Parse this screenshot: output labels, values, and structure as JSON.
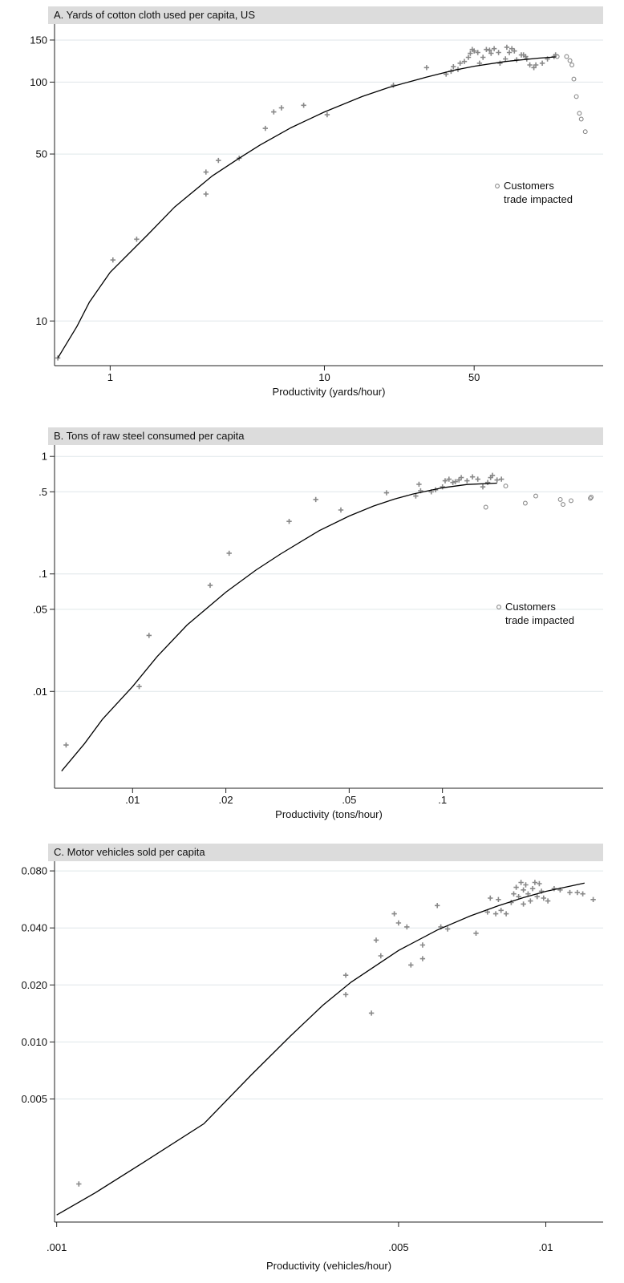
{
  "colors": {
    "title_bar": "#dcdcdc",
    "points": "#888888",
    "fit": "#000000",
    "grid": "#dfe6e9"
  },
  "chart_data": [
    {
      "type": "scatter",
      "title": "A. Yards of cotton cloth used per capita, US",
      "xlabel": "Productivity (yards/hour)",
      "ylabel": "",
      "xscale": "log",
      "yscale": "log",
      "xlim": [
        0.55,
        200
      ],
      "ylim": [
        6.5,
        175
      ],
      "xticks": [
        {
          "v": 1,
          "label": "1"
        },
        {
          "v": 10,
          "label": "10"
        },
        {
          "v": 50,
          "label": "50"
        }
      ],
      "yticks": [
        {
          "v": 10,
          "label": "10"
        },
        {
          "v": 50,
          "label": "50"
        },
        {
          "v": 100,
          "label": "100"
        },
        {
          "v": 150,
          "label": "150"
        }
      ],
      "legend": {
        "position": "center-right",
        "marker": "circle",
        "lines": [
          "Customers",
          "trade impacted"
        ]
      },
      "series": [
        {
          "name": "observations",
          "marker": "plus",
          "points": [
            [
              0.57,
              7
            ],
            [
              1.03,
              18
            ],
            [
              1.33,
              22
            ],
            [
              2.8,
              42
            ],
            [
              2.8,
              34
            ],
            [
              3.2,
              47
            ],
            [
              4.0,
              48
            ],
            [
              5.3,
              64
            ],
            [
              5.8,
              75
            ],
            [
              6.3,
              78
            ],
            [
              8.0,
              80
            ],
            [
              10.3,
              73
            ],
            [
              21,
              97
            ],
            [
              30,
              115
            ],
            [
              37,
              108
            ],
            [
              39,
              111
            ],
            [
              40,
              116
            ],
            [
              42,
              113
            ],
            [
              43,
              120
            ],
            [
              45,
              122
            ],
            [
              47,
              127
            ],
            [
              48,
              132
            ],
            [
              49,
              137
            ],
            [
              50,
              135
            ],
            [
              52,
              133
            ],
            [
              53,
              120
            ],
            [
              55,
              127
            ],
            [
              57,
              137
            ],
            [
              59,
              136
            ],
            [
              60,
              132
            ],
            [
              62,
              138
            ],
            [
              65,
              133
            ],
            [
              66,
              120
            ],
            [
              70,
              125
            ],
            [
              71,
              140
            ],
            [
              73,
              133
            ],
            [
              75,
              138
            ],
            [
              77,
              135
            ],
            [
              79,
              124
            ],
            [
              83,
              130
            ],
            [
              85,
              130
            ],
            [
              87,
              128
            ],
            [
              88,
              125
            ],
            [
              91,
              118
            ],
            [
              95,
              115
            ],
            [
              97,
              118
            ],
            [
              104,
              120
            ],
            [
              110,
              125
            ],
            [
              118,
              128
            ],
            [
              120,
              130
            ]
          ]
        },
        {
          "name": "Customers trade impacted",
          "marker": "circle",
          "points": [
            [
              122,
              128
            ],
            [
              135,
              128
            ],
            [
              140,
              123
            ],
            [
              143,
              118
            ],
            [
              146,
              103
            ],
            [
              150,
              87
            ],
            [
              155,
              74
            ],
            [
              158,
              70
            ],
            [
              165,
              62
            ]
          ]
        },
        {
          "name": "fit",
          "marker": "line",
          "points": [
            [
              0.57,
              7
            ],
            [
              0.7,
              9.5
            ],
            [
              0.8,
              12
            ],
            [
              1,
              16
            ],
            [
              1.5,
              23
            ],
            [
              2,
              30
            ],
            [
              3,
              40.5
            ],
            [
              4,
              48
            ],
            [
              5,
              54.5
            ],
            [
              7,
              64.5
            ],
            [
              10,
              75
            ],
            [
              15,
              87
            ],
            [
              20,
              95
            ],
            [
              30,
              105
            ],
            [
              40,
              112
            ],
            [
              50,
              116.5
            ],
            [
              70,
              122
            ],
            [
              100,
              126
            ],
            [
              120,
              127.5
            ]
          ]
        }
      ]
    },
    {
      "type": "scatter",
      "title": "B. Tons of raw steel consumed per capita",
      "xlabel": "Productivity (tons/hour)",
      "ylabel": "",
      "xscale": "log",
      "yscale": "log",
      "xlim": [
        0.0056,
        0.33
      ],
      "ylim": [
        0.0015,
        1.25
      ],
      "xticks": [
        {
          "v": 0.01,
          "label": ".01"
        },
        {
          "v": 0.02,
          "label": ".02"
        },
        {
          "v": 0.05,
          "label": ".05"
        },
        {
          "v": 0.1,
          "label": ".1"
        }
      ],
      "yticks": [
        {
          "v": 0.01,
          "label": ".01"
        },
        {
          "v": 0.05,
          "label": ".05"
        },
        {
          "v": 0.1,
          "label": ".1"
        },
        {
          "v": 0.5,
          "label": ".5"
        },
        {
          "v": 1,
          "label": "1"
        }
      ],
      "legend": {
        "position": "center-right",
        "marker": "circle",
        "lines": [
          "Customers",
          "trade impacted"
        ]
      },
      "series": [
        {
          "name": "observations",
          "marker": "plus",
          "points": [
            [
              0.0061,
              0.0035
            ],
            [
              0.0105,
              0.011
            ],
            [
              0.0113,
              0.03
            ],
            [
              0.0178,
              0.08
            ],
            [
              0.0205,
              0.15
            ],
            [
              0.032,
              0.28
            ],
            [
              0.039,
              0.43
            ],
            [
              0.047,
              0.35
            ],
            [
              0.066,
              0.49
            ],
            [
              0.082,
              0.46
            ],
            [
              0.084,
              0.58
            ],
            [
              0.085,
              0.51
            ],
            [
              0.092,
              0.5
            ],
            [
              0.095,
              0.52
            ],
            [
              0.1,
              0.55
            ],
            [
              0.102,
              0.62
            ],
            [
              0.105,
              0.64
            ],
            [
              0.108,
              0.6
            ],
            [
              0.11,
              0.61
            ],
            [
              0.113,
              0.63
            ],
            [
              0.115,
              0.66
            ],
            [
              0.12,
              0.62
            ],
            [
              0.125,
              0.67
            ],
            [
              0.13,
              0.64
            ],
            [
              0.135,
              0.55
            ],
            [
              0.14,
              0.6
            ],
            [
              0.143,
              0.66
            ],
            [
              0.145,
              0.69
            ],
            [
              0.15,
              0.63
            ],
            [
              0.155,
              0.64
            ]
          ]
        },
        {
          "name": "Customers trade impacted",
          "marker": "circle",
          "points": [
            [
              0.138,
              0.37
            ],
            [
              0.16,
              0.56
            ],
            [
              0.185,
              0.4
            ],
            [
              0.2,
              0.46
            ],
            [
              0.24,
              0.43
            ],
            [
              0.245,
              0.39
            ],
            [
              0.26,
              0.42
            ],
            [
              0.3,
              0.44
            ],
            [
              0.302,
              0.45
            ]
          ]
        },
        {
          "name": "fit",
          "marker": "line",
          "points": [
            [
              0.0059,
              0.0021
            ],
            [
              0.007,
              0.0036
            ],
            [
              0.008,
              0.0058
            ],
            [
              0.01,
              0.011
            ],
            [
              0.012,
              0.0198
            ],
            [
              0.015,
              0.0368
            ],
            [
              0.02,
              0.0699
            ],
            [
              0.025,
              0.1078
            ],
            [
              0.03,
              0.1474
            ],
            [
              0.04,
              0.2333
            ],
            [
              0.05,
              0.3113
            ],
            [
              0.06,
              0.3784
            ],
            [
              0.07,
              0.4337
            ],
            [
              0.08,
              0.477
            ],
            [
              0.1,
              0.5408
            ],
            [
              0.12,
              0.577
            ],
            [
              0.15,
              0.5928
            ]
          ]
        }
      ]
    },
    {
      "type": "scatter",
      "title": "C. Motor vehicles sold per capita",
      "xlabel": "Productivity (vehicles/hour)",
      "ylabel": "",
      "xscale": "log",
      "yscale": "log",
      "xlim": [
        0.00099,
        0.0131
      ],
      "ylim": [
        0.00112,
        0.09
      ],
      "xticks": [
        {
          "v": 0.001,
          "label": ".001"
        },
        {
          "v": 0.005,
          "label": ".005"
        },
        {
          "v": 0.01,
          "label": ".01"
        }
      ],
      "yticks": [
        {
          "v": 0.005,
          "label": "0.005"
        },
        {
          "v": 0.01,
          "label": "0.010"
        },
        {
          "v": 0.02,
          "label": "0.020"
        },
        {
          "v": 0.04,
          "label": "0.040"
        },
        {
          "v": 0.08,
          "label": "0.080"
        }
      ],
      "legend": null,
      "series": [
        {
          "name": "observations",
          "marker": "plus",
          "points": [
            [
              0.00111,
              0.00178
            ],
            [
              0.0039,
              0.0225
            ],
            [
              0.0039,
              0.0178
            ],
            [
              0.0044,
              0.0142
            ],
            [
              0.0045,
              0.0345
            ],
            [
              0.0046,
              0.0285
            ],
            [
              0.0049,
              0.0475
            ],
            [
              0.005,
              0.0425
            ],
            [
              0.0052,
              0.0405
            ],
            [
              0.0053,
              0.0255
            ],
            [
              0.0056,
              0.0325
            ],
            [
              0.0056,
              0.0275
            ],
            [
              0.006,
              0.0525
            ],
            [
              0.0061,
              0.0405
            ],
            [
              0.0063,
              0.0395
            ],
            [
              0.0072,
              0.0375
            ],
            [
              0.0076,
              0.0485
            ],
            [
              0.0077,
              0.0575
            ],
            [
              0.0079,
              0.0475
            ],
            [
              0.008,
              0.0565
            ],
            [
              0.0081,
              0.0495
            ],
            [
              0.0083,
              0.0475
            ],
            [
              0.0085,
              0.0545
            ],
            [
              0.0086,
              0.0605
            ],
            [
              0.0087,
              0.0655
            ],
            [
              0.0088,
              0.0585
            ],
            [
              0.0089,
              0.0695
            ],
            [
              0.009,
              0.0635
            ],
            [
              0.009,
              0.0535
            ],
            [
              0.0091,
              0.0675
            ],
            [
              0.0092,
              0.0605
            ],
            [
              0.0093,
              0.0555
            ],
            [
              0.0094,
              0.0645
            ],
            [
              0.0095,
              0.0695
            ],
            [
              0.0096,
              0.0585
            ],
            [
              0.0097,
              0.0685
            ],
            [
              0.0098,
              0.0625
            ],
            [
              0.0099,
              0.0575
            ],
            [
              0.0101,
              0.0555
            ],
            [
              0.0104,
              0.0645
            ],
            [
              0.0107,
              0.0635
            ],
            [
              0.0112,
              0.0615
            ],
            [
              0.0116,
              0.0615
            ],
            [
              0.0119,
              0.0605
            ],
            [
              0.0125,
              0.0565
            ]
          ]
        },
        {
          "name": "fit",
          "marker": "line",
          "points": [
            [
              0.001,
              0.00122
            ],
            [
              0.0012,
              0.0016
            ],
            [
              0.0015,
              0.0023
            ],
            [
              0.002,
              0.0037
            ],
            [
              0.0025,
              0.0067
            ],
            [
              0.003,
              0.0107
            ],
            [
              0.0035,
              0.0156
            ],
            [
              0.004,
              0.0207
            ],
            [
              0.005,
              0.0304
            ],
            [
              0.006,
              0.039
            ],
            [
              0.007,
              0.0462
            ],
            [
              0.008,
              0.0524
            ],
            [
              0.009,
              0.0578
            ],
            [
              0.01,
              0.0624
            ],
            [
              0.012,
              0.069
            ]
          ]
        }
      ]
    }
  ]
}
